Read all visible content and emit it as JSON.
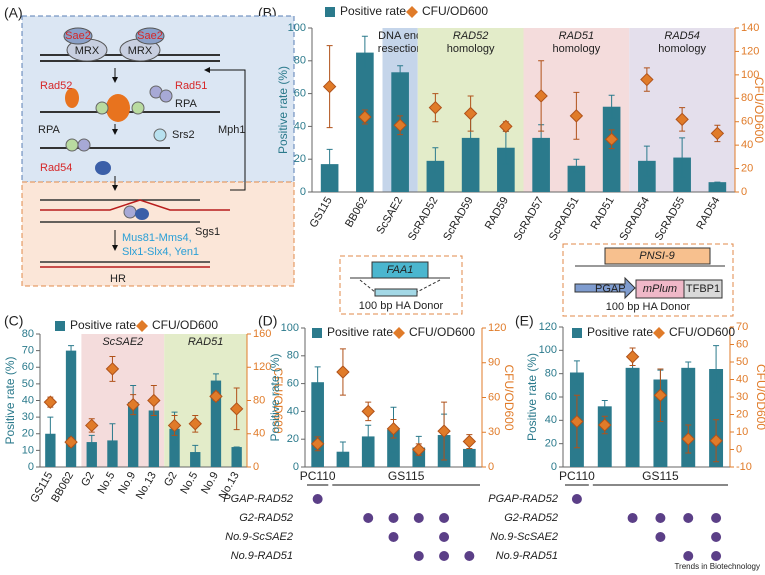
{
  "figure": {
    "panels": [
      "(A)",
      "(B)",
      "(C)",
      "(D)",
      "(E)"
    ],
    "diagram": {
      "sae2": "Sae2",
      "mrx": "MRX",
      "rad52": "Rad52",
      "rad51": "Rad51",
      "rpa": "RPA",
      "srs2": "Srs2",
      "rad54": "Rad54",
      "mph1": "Mph1",
      "sgs1": "Sgs1",
      "resolvases": [
        "Mus81-Mms4,",
        "Slx1-Slx4, Yen1"
      ],
      "hr": "HR"
    },
    "inset_d": {
      "gene": "FAA1",
      "donor": "100 bp HA Donor"
    },
    "inset_e": {
      "site": "PNSI-9",
      "promoter": "PGAP",
      "gene": "mPlum",
      "terminator": "TFBP1",
      "donor": "100 bp HA Donor"
    },
    "footer": "Trends in Biotechnology"
  },
  "chart_data": [
    {
      "type": "bar-line",
      "y_label": "Positive rate (%)",
      "y2_label": "CFU/OD600",
      "categories": [
        "GS115",
        "BB062",
        "ScSAE2",
        "ScRAD52",
        "ScRAD59",
        "RAD59",
        "ScRAD57",
        "ScRAD51",
        "RAD51",
        "ScRAD54",
        "ScRAD55",
        "RAD54"
      ],
      "ylim": [
        0,
        100
      ],
      "yticks": [
        0,
        20,
        40,
        60,
        80,
        100
      ],
      "y2lim": [
        0,
        140
      ],
      "y2ticks": [
        0,
        20,
        40,
        60,
        80,
        100,
        120,
        140
      ],
      "bands": [
        {
          "label": [
            "DNA end",
            "resection"
          ],
          "from": 2,
          "to": 2,
          "color": "#c5d5ea",
          "italic": false
        },
        {
          "label": [
            "RAD52",
            "homology"
          ],
          "from": 3,
          "to": 5,
          "color": "#e3ecc9",
          "italic": true
        },
        {
          "label": [
            "RAD51",
            "homology"
          ],
          "from": 6,
          "to": 8,
          "color": "#f4dcdc",
          "italic": true
        },
        {
          "label": [
            "RAD54",
            "homology"
          ],
          "from": 9,
          "to": 11,
          "color": "#e4dfec",
          "italic": true
        }
      ],
      "series": [
        {
          "name": "Positive rate",
          "color": "#2b7a8c",
          "values": [
            17,
            85,
            73,
            19,
            33,
            27,
            33,
            16,
            52,
            19,
            21,
            6
          ],
          "errors": [
            9,
            10,
            4,
            8,
            14,
            10,
            8,
            4,
            7,
            9,
            12,
            0
          ]
        },
        {
          "name": "CFU/OD600",
          "color": "#e07b29",
          "axis": "y2",
          "values": [
            90,
            64,
            57,
            72,
            67,
            56,
            82,
            65,
            45,
            96,
            62,
            50
          ],
          "errors": [
            35,
            6,
            8,
            12,
            15,
            4,
            30,
            20,
            8,
            10,
            10,
            7
          ]
        }
      ]
    },
    {
      "type": "bar-line",
      "y_label": "Positive rate (%)",
      "y2_label": "CFU/OD600",
      "categories": [
        "GS115",
        "BB062",
        "G2",
        "No.5",
        "No.9",
        "No.13",
        "G2",
        "No.5",
        "No.9",
        "No.13"
      ],
      "ylim": [
        0,
        80
      ],
      "yticks": [
        0,
        10,
        20,
        30,
        40,
        50,
        60,
        70,
        80
      ],
      "y2lim": [
        0,
        160
      ],
      "y2ticks": [
        0,
        40,
        80,
        120,
        160
      ],
      "bands": [
        {
          "label": [
            "ScSAE2"
          ],
          "from": 2,
          "to": 5,
          "color": "#f4dcdc",
          "italic": true
        },
        {
          "label": [
            "RAD51"
          ],
          "from": 6,
          "to": 9,
          "color": "#e3ecc9",
          "italic": true
        }
      ],
      "series": [
        {
          "name": "Positive rate",
          "color": "#2b7a8c",
          "values": [
            20,
            70,
            15,
            16,
            39,
            34,
            23,
            9,
            52,
            12
          ],
          "errors": [
            10,
            3,
            4,
            10,
            10,
            4,
            10,
            4,
            4,
            0
          ]
        },
        {
          "name": "CFU/OD600",
          "color": "#e07b29",
          "axis": "y2",
          "values": [
            78,
            30,
            50,
            118,
            75,
            80,
            50,
            52,
            85,
            70
          ],
          "errors": [
            6,
            5,
            8,
            15,
            12,
            18,
            12,
            10,
            5,
            25
          ]
        }
      ]
    },
    {
      "type": "bar-line",
      "y_label": "Positive rate (%)",
      "y2_label": "CFU/OD600",
      "ylim": [
        0,
        100
      ],
      "yticks": [
        0,
        20,
        40,
        60,
        80,
        100
      ],
      "y2lim": [
        0,
        120
      ],
      "y2ticks": [
        0,
        30,
        60,
        90,
        120
      ],
      "groups": [
        {
          "label": "PC110",
          "from": 0,
          "to": 0
        },
        {
          "label": "GS115",
          "from": 1,
          "to": 6
        }
      ],
      "matrix": [
        {
          "label": "PGAP-RAD52",
          "cells": [
            true,
            false,
            false,
            false,
            false,
            false,
            false
          ]
        },
        {
          "label": "G2-RAD52",
          "cells": [
            false,
            false,
            true,
            true,
            true,
            true,
            false
          ]
        },
        {
          "label": "No.9-ScSAE2",
          "cells": [
            false,
            false,
            false,
            true,
            false,
            true,
            false
          ]
        },
        {
          "label": "No.9-RAD51",
          "cells": [
            false,
            false,
            false,
            false,
            true,
            true,
            true
          ]
        }
      ],
      "series": [
        {
          "name": "Positive rate",
          "color": "#2b7a8c",
          "values": [
            61,
            11,
            22,
            27,
            14,
            23,
            13
          ],
          "errors": [
            11,
            7,
            8,
            16,
            8,
            15,
            5
          ]
        },
        {
          "name": "CFU/OD600",
          "color": "#e07b29",
          "axis": "y2",
          "values": [
            20,
            82,
            48,
            33,
            15,
            31,
            22
          ],
          "errors": [
            6,
            20,
            8,
            8,
            5,
            25,
            6
          ]
        }
      ]
    },
    {
      "type": "bar-line",
      "y_label": "Positive rate (%)",
      "y2_label": "CFU/OD600",
      "ylim": [
        0,
        120
      ],
      "yticks": [
        0,
        20,
        40,
        60,
        80,
        100,
        120
      ],
      "y2lim": [
        -10,
        70
      ],
      "y2ticks": [
        -10,
        0,
        10,
        20,
        30,
        40,
        50,
        60,
        70
      ],
      "groups": [
        {
          "label": "PC110",
          "from": 0,
          "to": 0
        },
        {
          "label": "GS115",
          "from": 1,
          "to": 5
        }
      ],
      "matrix": [
        {
          "label": "PGAP-RAD52",
          "cells": [
            true,
            false,
            false,
            false,
            false,
            false
          ]
        },
        {
          "label": "G2-RAD52",
          "cells": [
            false,
            false,
            true,
            true,
            true,
            true
          ]
        },
        {
          "label": "No.9-ScSAE2",
          "cells": [
            false,
            false,
            false,
            true,
            false,
            true
          ]
        },
        {
          "label": "No.9-RAD51",
          "cells": [
            false,
            false,
            false,
            false,
            true,
            true
          ]
        }
      ],
      "series": [
        {
          "name": "Positive rate",
          "color": "#2b7a8c",
          "values": [
            81,
            52,
            85,
            75,
            85,
            84
          ],
          "errors": [
            10,
            5,
            10,
            8,
            5,
            20
          ]
        },
        {
          "name": "CFU/OD600",
          "color": "#e07b29",
          "axis": "y2",
          "values": [
            16,
            14,
            53,
            31,
            6,
            5
          ],
          "errors": [
            15,
            5,
            5,
            15,
            8,
            12
          ]
        }
      ]
    }
  ]
}
